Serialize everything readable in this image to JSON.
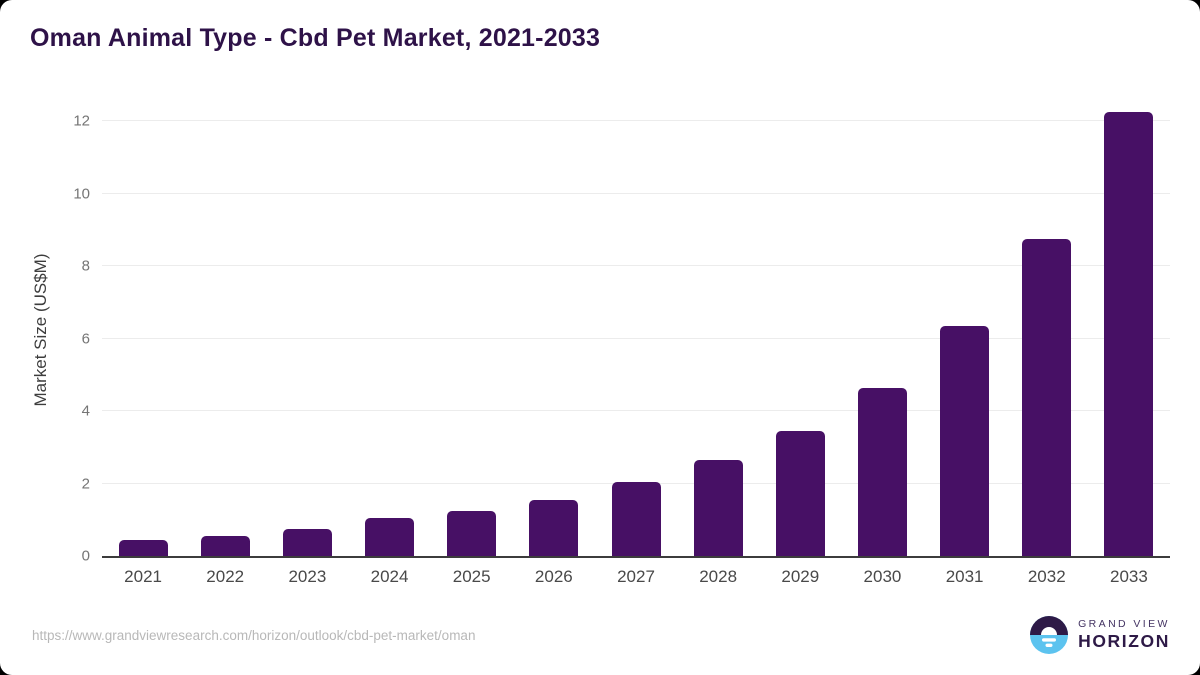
{
  "page": {
    "background_color": "#000000",
    "card_background_color": "#ffffff",
    "title_color": "#2e1248",
    "axis_text_color": "#757575",
    "x_label_color": "#494949",
    "gridline_color": "#ececec",
    "baseline_color": "#3c3c3c"
  },
  "chart_data": {
    "type": "bar",
    "title": "Oman Animal Type - Cbd Pet Market, 2021-2033",
    "xlabel": "",
    "ylabel": "Market Size (US$M)",
    "categories": [
      "2021",
      "2022",
      "2023",
      "2024",
      "2025",
      "2026",
      "2027",
      "2028",
      "2029",
      "2030",
      "2031",
      "2032",
      "2033"
    ],
    "values": [
      0.45,
      0.55,
      0.75,
      1.05,
      1.25,
      1.55,
      2.05,
      2.65,
      3.45,
      4.65,
      6.35,
      8.75,
      12.25
    ],
    "series_name": "Market Size (US$M)",
    "ylim": [
      0,
      12.7
    ],
    "yticks": [
      0,
      2,
      4,
      6,
      8,
      10,
      12
    ],
    "grid": "horizontal",
    "legend": "none",
    "bar_color": "#471065"
  },
  "footer": {
    "source_url": "https://www.grandviewresearch.com/horizon/outlook/cbd-pet-market/oman",
    "logo": {
      "line1": "GRAND VIEW",
      "line2": "HORIZON",
      "icon_top_color": "#2e1a47",
      "icon_bottom_color": "#5cc3ef"
    }
  }
}
